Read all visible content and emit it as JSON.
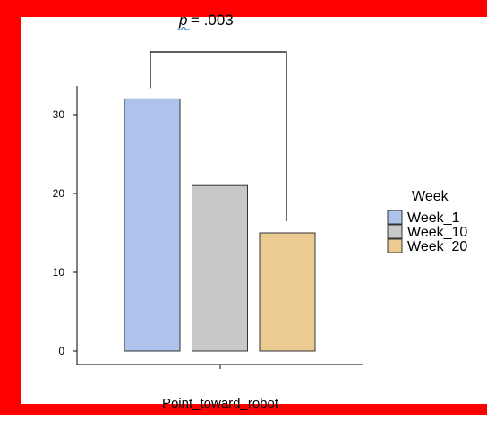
{
  "annotation": {
    "p_letter": "p",
    "p_value": "= .003"
  },
  "colors": {
    "frame": "#ff0000",
    "axis": "#000000",
    "p_underline": "#3a7bd5"
  },
  "chart_data": {
    "type": "bar",
    "title": "",
    "xlabel": "Point_toward_robot",
    "ylabel": "",
    "categories": [
      "Point_toward_robot"
    ],
    "ylim": [
      0,
      34
    ],
    "yticks": [
      0,
      10,
      20,
      30
    ],
    "grid": false,
    "legend_title": "Week",
    "legend_position": "right",
    "series": [
      {
        "name": "Week_1",
        "values": [
          32
        ],
        "color": "#aec3ec"
      },
      {
        "name": "Week_10",
        "values": [
          21
        ],
        "color": "#c8c8c8"
      },
      {
        "name": "Week_20",
        "values": [
          15
        ],
        "color": "#ebcb91"
      }
    ],
    "significance": {
      "between": [
        "Week_1",
        "Week_20"
      ],
      "label": "p = .003"
    }
  }
}
